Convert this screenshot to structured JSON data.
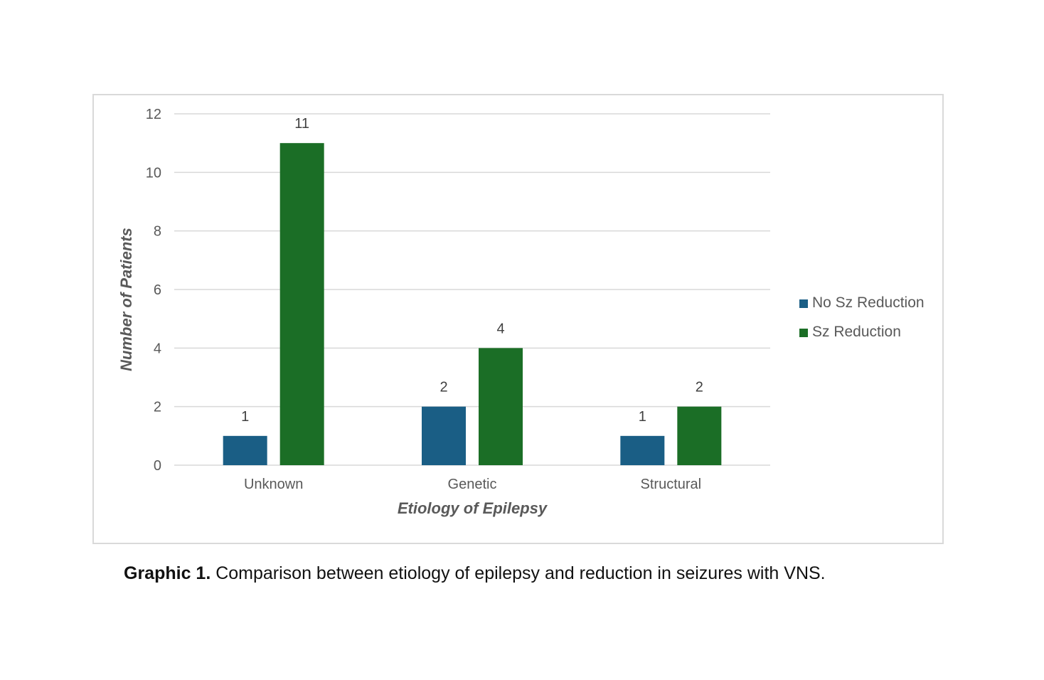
{
  "chart_data": {
    "type": "bar",
    "title": "",
    "xlabel": "Etiology of Epilepsy",
    "ylabel": "Number of Patients",
    "categories": [
      "Unknown",
      "Genetic",
      "Structural"
    ],
    "series": [
      {
        "name": "No Sz Reduction",
        "values": [
          1,
          2,
          1
        ],
        "color": "#1a5e85"
      },
      {
        "name": "Sz Reduction",
        "values": [
          11,
          4,
          2
        ],
        "color": "#1b6e26"
      }
    ],
    "ylim": [
      0,
      12
    ],
    "yticks": [
      0,
      2,
      4,
      6,
      8,
      10,
      12
    ],
    "grid": true,
    "legend_position": "right"
  },
  "caption": {
    "label": "Graphic 1.",
    "text": " Comparison between etiology of epilepsy and reduction in seizures with VNS."
  }
}
